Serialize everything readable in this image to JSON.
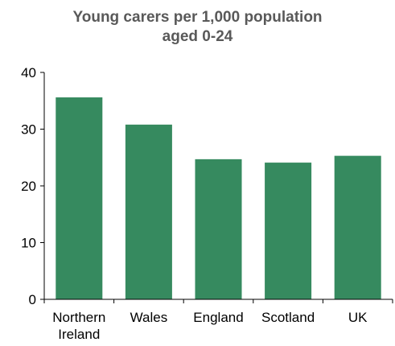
{
  "chart_data": {
    "type": "bar",
    "title_lines": [
      "Young carers per 1,000 population",
      "aged 0-24"
    ],
    "categories": [
      {
        "lines": [
          "Northern",
          "Ireland"
        ]
      },
      {
        "lines": [
          "Wales"
        ]
      },
      {
        "lines": [
          "England"
        ]
      },
      {
        "lines": [
          "Scotland"
        ]
      },
      {
        "lines": [
          "UK"
        ]
      }
    ],
    "values": [
      35.6,
      30.8,
      24.7,
      24.1,
      25.3
    ],
    "ylim": [
      0,
      40
    ],
    "yticks": [
      "0",
      "10",
      "20",
      "30",
      "40"
    ],
    "grid": false,
    "legend": "none",
    "bar_color": "#368a5f",
    "axis_color": "#000000",
    "title_color": "#595959"
  }
}
